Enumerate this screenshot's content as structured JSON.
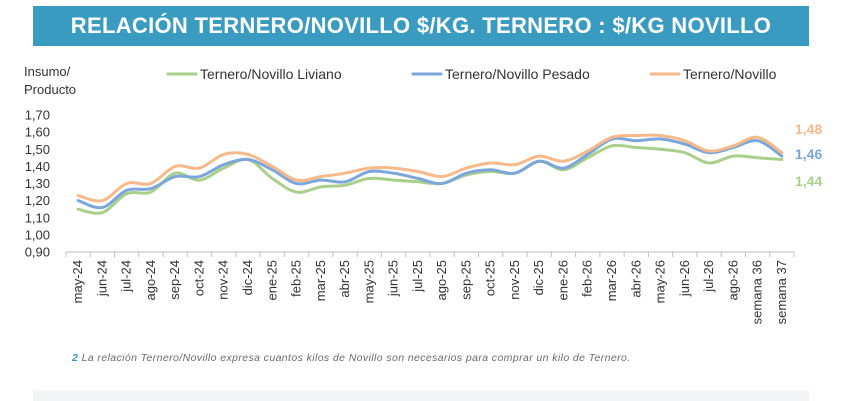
{
  "header": {
    "title": "RELACIÓN TERNERO/NOVILLO $/KG. TERNERO : $/KG NOVILLO"
  },
  "footnote": {
    "number": "2",
    "text": "La relación Ternero/Novillo expresa cuantos kilos de Novillo son necesarios para comprar un kilo de Ternero."
  },
  "chart_data": {
    "type": "line",
    "ylabel_lines": [
      "Insumo/",
      "Producto"
    ],
    "ylim": [
      0.9,
      1.7
    ],
    "yticks": [
      0.9,
      1.0,
      1.1,
      1.2,
      1.3,
      1.4,
      1.5,
      1.6,
      1.7
    ],
    "ytick_labels": [
      "0,90",
      "1,00",
      "1,10",
      "1,20",
      "1,30",
      "1,40",
      "1,50",
      "1,60",
      "1,70"
    ],
    "categories": [
      "may-24",
      "jun-24",
      "jul-24",
      "ago-24",
      "sep-24",
      "oct-24",
      "nov-24",
      "dic-24",
      "ene-25",
      "feb-25",
      "mar-25",
      "abr-25",
      "may-25",
      "jun-25",
      "jul-25",
      "ago-25",
      "sep-25",
      "oct-25",
      "nov-25",
      "dic-25",
      "ene-26",
      "feb-26",
      "mar-26",
      "abr-26",
      "may-26",
      "jun-26",
      "jul-26",
      "ago-26",
      "semana 36",
      "semana 37"
    ],
    "legend_position": "top",
    "grid": false,
    "series": [
      {
        "name": "Ternero/Novillo Liviano",
        "color": "#a9cf8a",
        "values": [
          1.15,
          1.13,
          1.24,
          1.25,
          1.36,
          1.32,
          1.39,
          1.44,
          1.33,
          1.25,
          1.28,
          1.29,
          1.33,
          1.32,
          1.31,
          1.3,
          1.35,
          1.37,
          1.36,
          1.43,
          1.38,
          1.45,
          1.52,
          1.51,
          1.5,
          1.48,
          1.42,
          1.46,
          1.45,
          1.44
        ],
        "end_label": "1,44"
      },
      {
        "name": "Ternero/Novillo Pesado",
        "color": "#7aa6d9",
        "values": [
          1.2,
          1.16,
          1.26,
          1.27,
          1.34,
          1.34,
          1.41,
          1.44,
          1.38,
          1.3,
          1.32,
          1.31,
          1.37,
          1.36,
          1.33,
          1.3,
          1.36,
          1.38,
          1.36,
          1.43,
          1.39,
          1.47,
          1.56,
          1.55,
          1.56,
          1.53,
          1.48,
          1.51,
          1.55,
          1.46
        ],
        "end_label": "1,46"
      },
      {
        "name": "Ternero/Novillo",
        "color": "#f7b98a",
        "values": [
          1.23,
          1.2,
          1.3,
          1.3,
          1.4,
          1.39,
          1.47,
          1.47,
          1.4,
          1.32,
          1.34,
          1.36,
          1.39,
          1.39,
          1.37,
          1.34,
          1.39,
          1.42,
          1.41,
          1.46,
          1.43,
          1.49,
          1.57,
          1.58,
          1.58,
          1.55,
          1.49,
          1.52,
          1.57,
          1.48
        ],
        "end_label": "1,48"
      }
    ]
  }
}
